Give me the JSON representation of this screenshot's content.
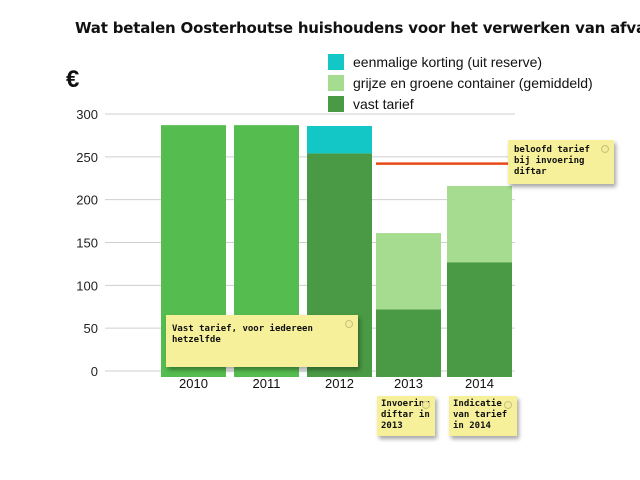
{
  "chart_data": {
    "type": "bar",
    "title": "Wat betalen Oosterhoutse huishoudens voor het verwerken van afval?",
    "ylabel": "€",
    "xlabel": "",
    "ylim": [
      0,
      300
    ],
    "yticks": [
      0,
      50,
      100,
      150,
      200,
      250,
      300
    ],
    "categories": [
      "2010",
      "2011",
      "2012",
      "2013",
      "2014"
    ],
    "stacked": true,
    "series": [
      {
        "name": "vast tarief",
        "color": "#4a9a45",
        "values": [
          null,
          null,
          254,
          72,
          127
        ]
      },
      {
        "name": "grijze en groene container (gemiddeld)",
        "color": "#a6dc8f",
        "values": [
          null,
          null,
          null,
          89,
          89
        ]
      },
      {
        "name": "eenmalige korting (uit reserve)",
        "color": "#14c7c7",
        "values": [
          null,
          null,
          32,
          null,
          null
        ]
      }
    ],
    "totals_single_color": {
      "color": "#55bd4f",
      "values": [
        287,
        287,
        null,
        null,
        null
      ]
    },
    "reference_line": {
      "value": 242,
      "from_category": "2013",
      "to_category": "2014",
      "color": "#e84a18"
    },
    "grid": true,
    "legend_position": "top-right"
  },
  "notes": [
    {
      "text": "beloofd tarief bij invoering diftar"
    },
    {
      "text": "Vast tarief, voor iedereen hetzelfde"
    },
    {
      "text": "Invoering diftar in 2013"
    },
    {
      "text": "Indicatie van tarief in 2014"
    }
  ]
}
